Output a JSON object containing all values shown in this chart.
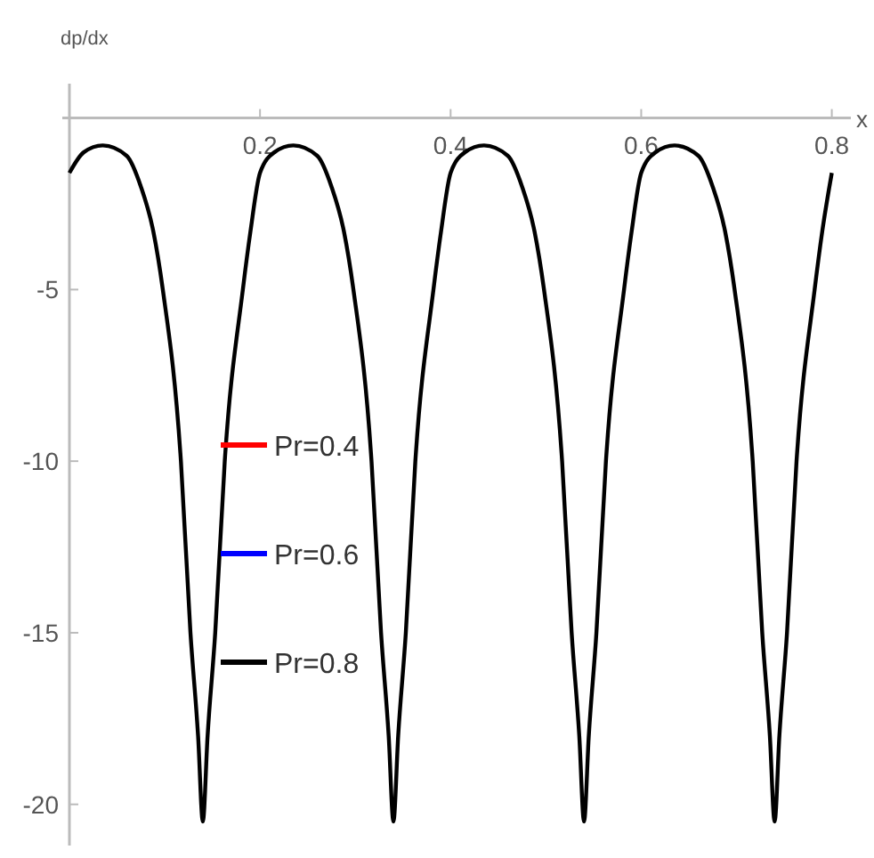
{
  "chart_data": {
    "type": "line",
    "xlabel": "x",
    "ylabel": "dp/dx",
    "x": [
      0,
      0.015,
      0.035,
      0.06,
      0.075,
      0.088,
      0.098,
      0.117,
      0.127,
      0.135,
      0.14,
      0.145,
      0.153,
      0.163,
      0.182,
      0.19,
      0.2,
      0.215,
      0.235,
      0.26,
      0.275,
      0.288,
      0.298,
      0.317,
      0.327,
      0.335,
      0.34,
      0.345,
      0.353,
      0.363,
      0.382,
      0.39,
      0.4,
      0.415,
      0.435,
      0.46,
      0.475,
      0.488,
      0.498,
      0.517,
      0.527,
      0.535,
      0.54,
      0.545,
      0.553,
      0.563,
      0.582,
      0.59,
      0.6,
      0.615,
      0.635,
      0.66,
      0.675,
      0.688,
      0.698,
      0.717,
      0.727,
      0.735,
      0.74,
      0.745,
      0.753,
      0.763,
      0.782,
      0.79,
      0.8
    ],
    "series": [
      {
        "name": "Pr=0.4",
        "color": "#ff0000",
        "values": [
          null,
          null,
          null,
          null,
          null,
          null,
          null,
          null,
          null,
          null,
          null,
          null,
          null,
          null,
          null,
          null,
          null,
          null,
          null,
          null,
          null,
          null,
          null,
          null,
          null,
          null,
          null,
          null,
          null,
          null,
          null,
          null,
          null,
          null,
          null,
          null,
          null,
          null,
          null,
          null,
          null,
          null,
          null,
          null,
          null,
          null,
          null,
          null,
          null,
          null,
          null,
          null,
          null,
          null,
          null,
          null,
          null,
          null,
          null,
          null,
          null,
          null,
          null,
          null,
          null
        ]
      },
      {
        "name": "Pr=0.6",
        "color": "#0000ff",
        "values": [
          null,
          null,
          null,
          null,
          null,
          null,
          null,
          null,
          null,
          null,
          null,
          null,
          null,
          null,
          null,
          null,
          null,
          null,
          null,
          null,
          null,
          null,
          null,
          null,
          null,
          null,
          null,
          null,
          null,
          null,
          null,
          null,
          null,
          null,
          null,
          null,
          null,
          null,
          null,
          null,
          null,
          null,
          null,
          null,
          null,
          null,
          null,
          null,
          null,
          null,
          null,
          null,
          null,
          null,
          null,
          null,
          null,
          null,
          null,
          null,
          null,
          null,
          null,
          null,
          null
        ]
      },
      {
        "name": "Pr=0.8",
        "color": "#000000",
        "values": [
          -1.6,
          -1.0,
          -0.8,
          -1.1,
          -2,
          -3.3,
          -5,
          -10,
          -15,
          -18,
          -20.5,
          -18,
          -15,
          -10,
          -5,
          -3.3,
          -1.6,
          -1.0,
          -0.8,
          -1.1,
          -2,
          -3.3,
          -5,
          -10,
          -15,
          -18,
          -20.5,
          -18,
          -15,
          -10,
          -5,
          -3.3,
          -1.6,
          -1.0,
          -0.8,
          -1.1,
          -2,
          -3.3,
          -5,
          -10,
          -15,
          -18,
          -20.5,
          -18,
          -15,
          -10,
          -5,
          -3.3,
          -1.6,
          -1.0,
          -0.8,
          -1.1,
          -2,
          -3.3,
          -5,
          -10,
          -15,
          -18,
          -20.5,
          -18,
          -15,
          -10,
          -5,
          -3.3,
          -1.6
        ]
      }
    ],
    "xlim": [
      0,
      0.82
    ],
    "ylim": [
      -21.2,
      1
    ],
    "xticks": [
      0.2,
      0.4,
      0.6,
      0.8
    ],
    "yticks": [
      -5,
      -10,
      -15,
      -20
    ],
    "legend": "left",
    "grid": false,
    "marker": "none",
    "line_style": "solid"
  }
}
